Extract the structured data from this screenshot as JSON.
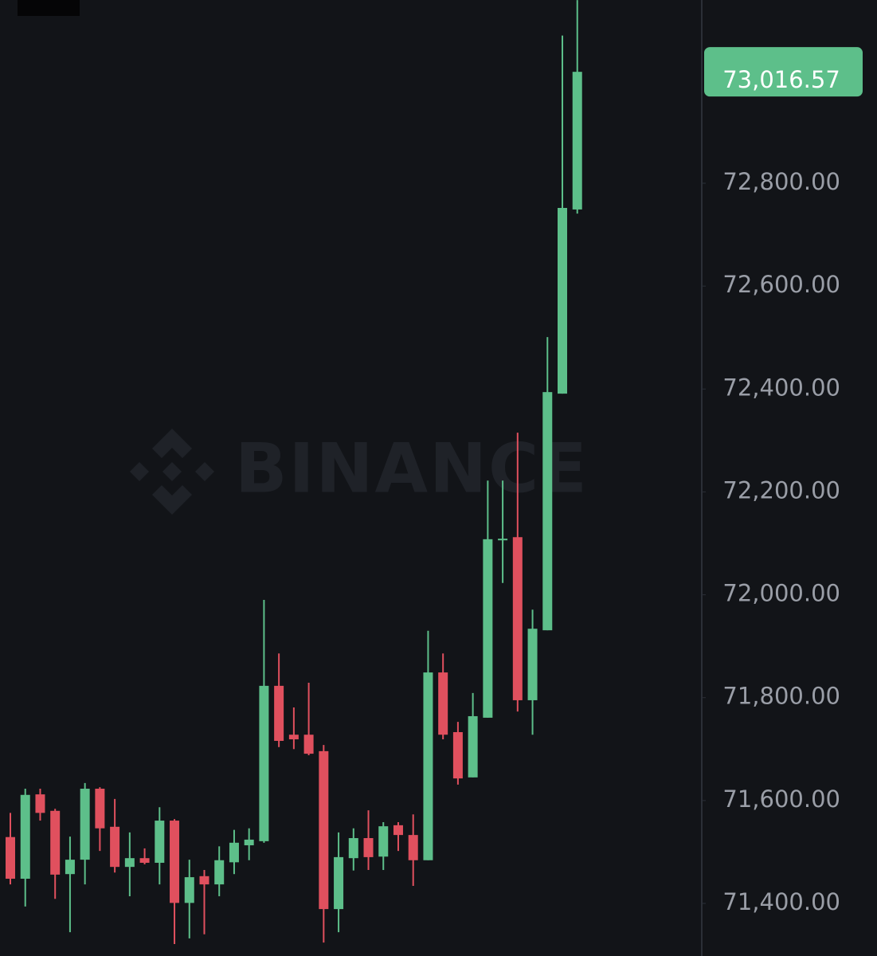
{
  "chart_data": {
    "type": "candlestick",
    "watermark": "BINANCE",
    "up_color": "#5dbf8a",
    "down_color": "#e0505e",
    "ohlc": [
      [
        71529,
        71576,
        71437,
        71448
      ],
      [
        71448,
        71623,
        71394,
        71611
      ],
      [
        71612,
        71623,
        71561,
        71576
      ],
      [
        71580,
        71584,
        71409,
        71456
      ],
      [
        71457,
        71530,
        71344,
        71485
      ],
      [
        71485,
        71634,
        71437,
        71623
      ],
      [
        71623,
        71626,
        71502,
        71546
      ],
      [
        71549,
        71603,
        71460,
        71471
      ],
      [
        71471,
        71538,
        71414,
        71488
      ],
      [
        71488,
        71507,
        71476,
        71479
      ],
      [
        71479,
        71587,
        71437,
        71561
      ],
      [
        71561,
        71564,
        71321,
        71401
      ],
      [
        71401,
        71485,
        71332,
        71451
      ],
      [
        71453,
        71465,
        71340,
        71437
      ],
      [
        71437,
        71511,
        71414,
        71484
      ],
      [
        71480,
        71543,
        71457,
        71518
      ],
      [
        71513,
        71546,
        71484,
        71524
      ],
      [
        71521,
        71990,
        71518,
        71823
      ],
      [
        71823,
        71886,
        71704,
        71716
      ],
      [
        71728,
        71781,
        71700,
        71719
      ],
      [
        71728,
        71829,
        71688,
        71691
      ],
      [
        71696,
        71708,
        71324,
        71389
      ],
      [
        71389,
        71538,
        71344,
        71490
      ],
      [
        71488,
        71546,
        71464,
        71527
      ],
      [
        71527,
        71581,
        71465,
        71490
      ],
      [
        71491,
        71558,
        71465,
        71550
      ],
      [
        71552,
        71558,
        71502,
        71533
      ],
      [
        71533,
        71573,
        71434,
        71484
      ],
      [
        71484,
        71930,
        71484,
        71849
      ],
      [
        71849,
        71886,
        71719,
        71728
      ],
      [
        71733,
        71753,
        71631,
        71643
      ],
      [
        71645,
        71809,
        71645,
        71764
      ],
      [
        71761,
        72222,
        71761,
        72108
      ],
      [
        72106,
        72222,
        72023,
        72109
      ],
      [
        72112,
        72315,
        71773,
        71795
      ],
      [
        71795,
        71971,
        71728,
        71934
      ],
      [
        71931,
        72501,
        71931,
        72394
      ],
      [
        72391,
        73087,
        72391,
        72752
      ],
      [
        72749,
        73156,
        72741,
        73016.57
      ]
    ],
    "last_price": {
      "value": 73016.57,
      "label": "73,016.57"
    },
    "ylim": [
      71297.8,
      73156.2
    ],
    "yticks": [
      {
        "value": 71400,
        "label": "71,400.00"
      },
      {
        "value": 71600,
        "label": "71,600.00"
      },
      {
        "value": 71800,
        "label": "71,800.00"
      },
      {
        "value": 72000,
        "label": "72,000.00"
      },
      {
        "value": 72200,
        "label": "72,200.00"
      },
      {
        "value": 72400,
        "label": "72,400.00"
      },
      {
        "value": 72600,
        "label": "72,600.00"
      },
      {
        "value": 72800,
        "label": "72,800.00"
      }
    ]
  }
}
